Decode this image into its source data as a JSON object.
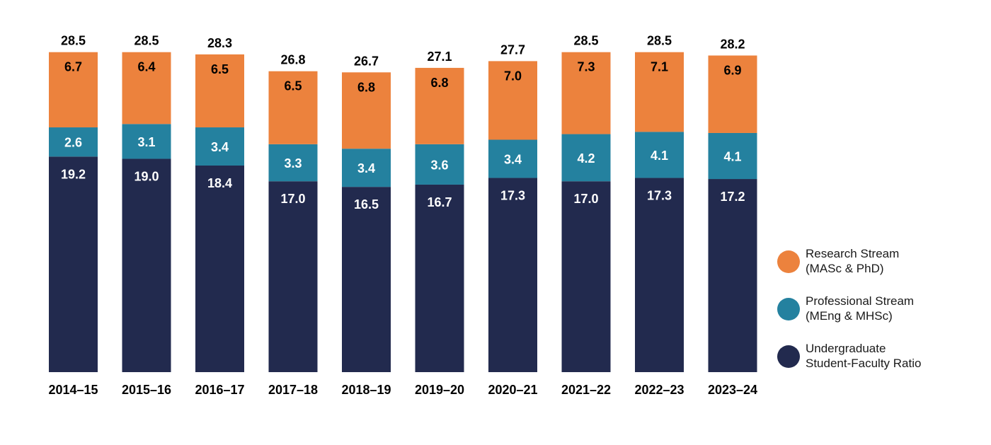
{
  "chart_data": {
    "type": "bar",
    "stacked": true,
    "categories": [
      "2014–15",
      "2015–16",
      "2016–17",
      "2017–18",
      "2018–19",
      "2019–20",
      "2020–21",
      "2021–22",
      "2022–23",
      "2023–24"
    ],
    "totals": [
      "28.5",
      "28.5",
      "28.3",
      "26.8",
      "26.7",
      "27.1",
      "27.7",
      "28.5",
      "28.5",
      "28.2"
    ],
    "series": [
      {
        "name_lines": [
          "Undergraduate",
          "Student-Faculty Ratio"
        ],
        "color": "#222a4e",
        "label_color": "#ffffff",
        "values": [
          19.2,
          19.0,
          18.4,
          17.0,
          16.5,
          16.7,
          17.3,
          17.0,
          17.3,
          17.2
        ],
        "labels": [
          "19.2",
          "19.0",
          "18.4",
          "17.0",
          "16.5",
          "16.7",
          "17.3",
          "17.0",
          "17.3",
          "17.2"
        ]
      },
      {
        "name_lines": [
          "Professional Stream",
          "(MEng & MHSc)"
        ],
        "color": "#24819f",
        "label_color": "#ffffff",
        "values": [
          2.6,
          3.1,
          3.4,
          3.3,
          3.4,
          3.6,
          3.4,
          4.2,
          4.1,
          4.1
        ],
        "labels": [
          "2.6",
          "3.1",
          "3.4",
          "3.3",
          "3.4",
          "3.6",
          "3.4",
          "4.2",
          "4.1",
          "4.1"
        ]
      },
      {
        "name_lines": [
          "Research Stream",
          "(MASc & PhD)"
        ],
        "color": "#ec823d",
        "label_color": "#000000",
        "values": [
          6.7,
          6.4,
          6.5,
          6.5,
          6.8,
          6.8,
          7.0,
          7.3,
          7.1,
          6.9
        ],
        "labels": [
          "6.7",
          "6.4",
          "6.5",
          "6.5",
          "6.8",
          "6.8",
          "7.0",
          "7.3",
          "7.1",
          "6.9"
        ]
      }
    ],
    "legend_order": [
      2,
      1,
      0
    ],
    "legend_position": "right",
    "ylim": [
      0,
      28.5
    ],
    "grid": false,
    "title": "",
    "xlabel": "",
    "ylabel": ""
  }
}
